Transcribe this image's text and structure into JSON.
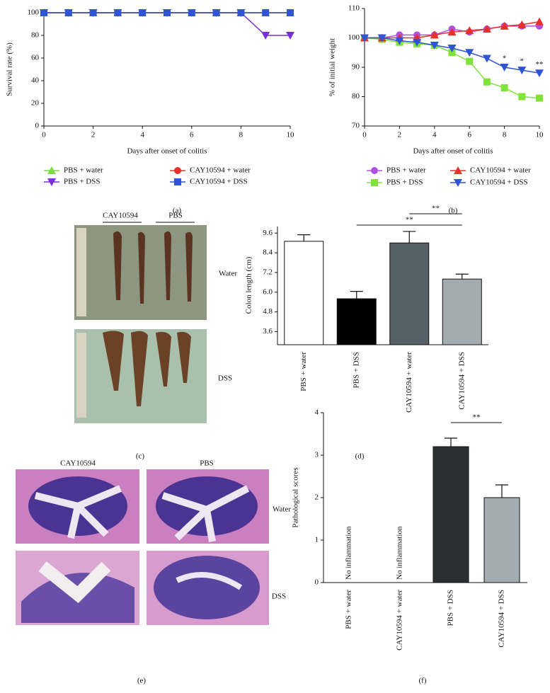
{
  "chart_data": [
    {
      "type": "line",
      "caption": "(a)",
      "x_label": "Days after onset of colitis",
      "y_label": "Survival rate (%)",
      "x": [
        0,
        1,
        2,
        3,
        4,
        5,
        6,
        7,
        8,
        9,
        10
      ],
      "xlim": [
        0,
        10
      ],
      "xticks": [
        0,
        2,
        4,
        6,
        8,
        10
      ],
      "ylim": [
        0,
        100
      ],
      "yticks": [
        0,
        20,
        40,
        60,
        80,
        100
      ],
      "series": [
        {
          "name": "PBS + water",
          "color": "#7ddb3a",
          "marker": "triangle",
          "values": [
            100,
            100,
            100,
            100,
            100,
            100,
            100,
            100,
            100,
            100,
            100
          ]
        },
        {
          "name": "PBS + DSS",
          "color": "#7b2fd6",
          "marker": "triangle-down",
          "values": [
            100,
            100,
            100,
            100,
            100,
            100,
            100,
            100,
            100,
            80,
            80
          ]
        },
        {
          "name": "CAY10594 + water",
          "color": "#e8302a",
          "marker": "circle",
          "values": [
            100,
            100,
            100,
            100,
            100,
            100,
            100,
            100,
            100,
            100,
            100
          ]
        },
        {
          "name": "CAY10594 + DSS",
          "color": "#2f55d4",
          "marker": "square",
          "values": [
            100,
            100,
            100,
            100,
            100,
            100,
            100,
            100,
            100,
            100,
            100
          ]
        }
      ]
    },
    {
      "type": "line",
      "caption": "(b)",
      "x_label": "Days after onset of colitis",
      "y_label": "% of initial weight",
      "x": [
        0,
        1,
        2,
        3,
        4,
        5,
        6,
        7,
        8,
        9,
        10
      ],
      "xlim": [
        0,
        10
      ],
      "xticks": [
        0,
        2,
        4,
        6,
        8,
        10
      ],
      "ylim": [
        70,
        110
      ],
      "yticks": [
        70,
        80,
        90,
        100,
        110
      ],
      "series": [
        {
          "name": "PBS + water",
          "color": "#b050e0",
          "marker": "circle",
          "values": [
            100,
            100,
            101,
            101,
            101,
            103,
            102,
            103,
            104,
            104,
            104
          ]
        },
        {
          "name": "PBS + DSS",
          "color": "#7fe33a",
          "marker": "square",
          "values": [
            100,
            99.5,
            98.5,
            98,
            97.5,
            95,
            92,
            85,
            83,
            80,
            79.5
          ]
        },
        {
          "name": "CAY10594 + water",
          "color": "#e8302a",
          "marker": "triangle",
          "values": [
            100,
            100,
            100,
            100,
            101,
            102,
            102.5,
            103,
            104,
            104.5,
            105.5
          ]
        },
        {
          "name": "CAY10594 + DSS",
          "color": "#2f55d4",
          "marker": "triangle-down",
          "values": [
            100,
            100,
            99,
            98.5,
            97.5,
            96.5,
            95,
            93,
            90,
            89,
            88
          ]
        }
      ],
      "annotations": [
        {
          "x": 8,
          "text": "*"
        },
        {
          "x": 9,
          "text": "*"
        },
        {
          "x": 10,
          "text": "**"
        }
      ]
    },
    {
      "type": "bar",
      "caption": "(d)",
      "y_label": "Colon length (cm)",
      "categories": [
        "PBS + water",
        "PBS + DSS",
        "CAY10594 + water",
        "CAY10594 + DSS"
      ],
      "values": [
        9.1,
        5.6,
        9.0,
        6.8
      ],
      "errors": [
        0.4,
        0.45,
        0.7,
        0.3
      ],
      "colors": [
        "#ffffff",
        "#000000",
        "#555f66",
        "#a3acb0"
      ],
      "ylim": [
        2.8,
        10
      ],
      "yticks": [
        3.6,
        4.8,
        {
          "value": 6,
          "label": "6.0"
        },
        7.2,
        8.4,
        9.6
      ],
      "significance": [
        "**",
        "**"
      ]
    },
    {
      "type": "bar",
      "caption": "(f)",
      "y_label": "Pathological scores",
      "categories": [
        "PBS + water",
        "CAY10594 + water",
        "PBS + DSS",
        "CAY10594 + DSS"
      ],
      "values": [
        0,
        0,
        3.2,
        2.0
      ],
      "errors": [
        null,
        null,
        0.2,
        0.3
      ],
      "colors": [
        "#2a2e30",
        "#2a2e30",
        "#2a2e30",
        "#a3acb0"
      ],
      "bar_notes": [
        "No inflammation",
        "No inflammation",
        null,
        null
      ],
      "ylim": [
        0,
        4
      ],
      "yticks": [
        0,
        1,
        2,
        3,
        4
      ],
      "significance": [
        "**"
      ]
    }
  ],
  "figures": [
    {
      "caption": "(c)",
      "columns": [
        "CAY10594",
        "PBS"
      ],
      "rows": [
        "Water",
        "DSS"
      ]
    },
    {
      "caption": "(e)",
      "columns": [
        "CAY10594",
        "PBS"
      ],
      "rows": [
        "Water",
        "DSS"
      ]
    }
  ]
}
